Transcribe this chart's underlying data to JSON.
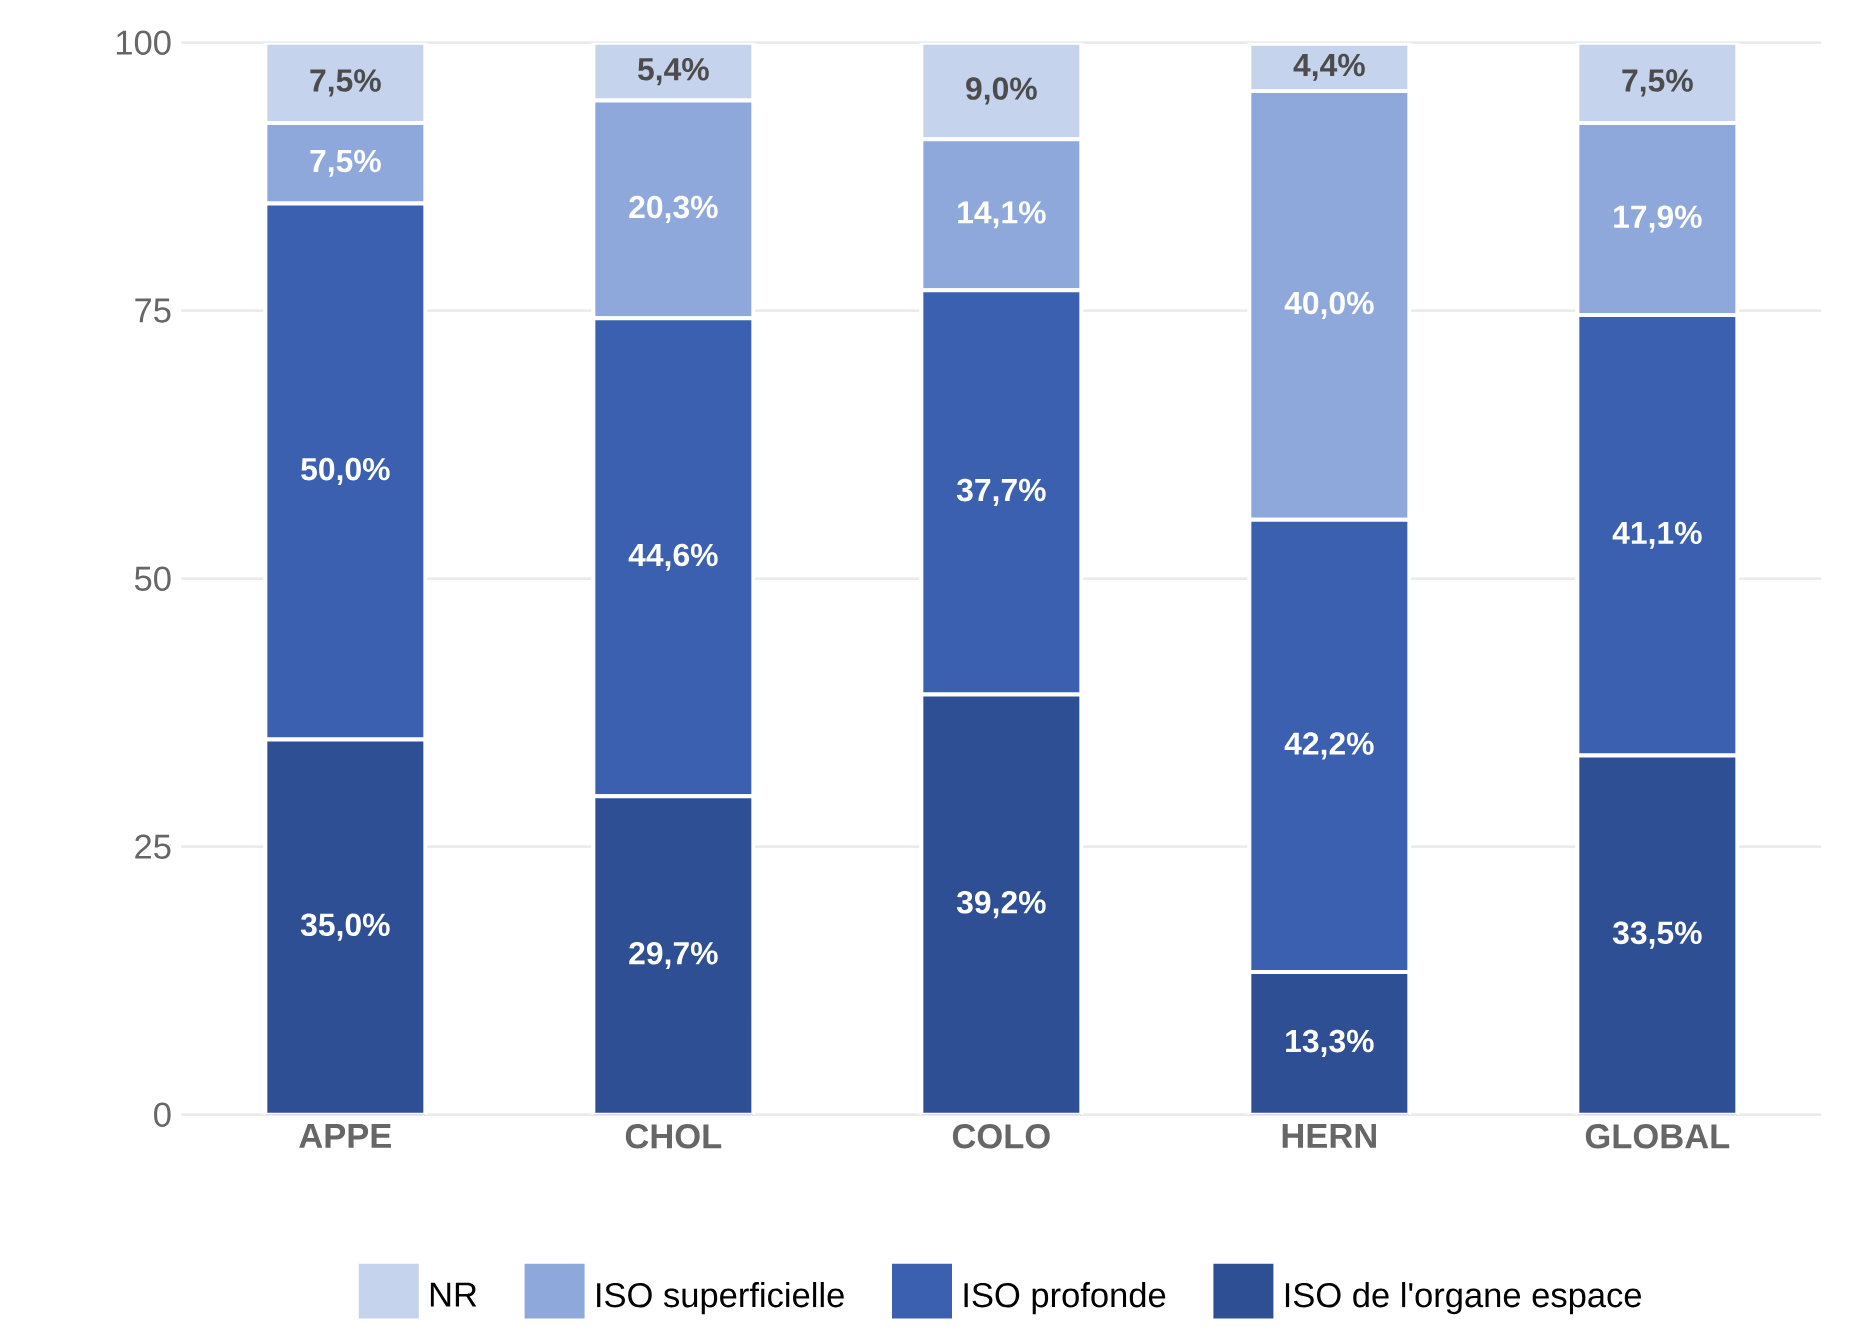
{
  "chart_data": {
    "type": "bar",
    "stacked": true,
    "categories": [
      "APPE",
      "CHOL",
      "COLO",
      "HERN",
      "GLOBAL"
    ],
    "series": [
      {
        "name": "ISO de l'organe espace",
        "color": "#2f4f94",
        "values": [
          35.0,
          29.7,
          39.2,
          13.3,
          33.5
        ],
        "value_labels": [
          "35,0%",
          "29,7%",
          "39,2%",
          "13,3%",
          "33,5%"
        ]
      },
      {
        "name": "ISO profonde",
        "color": "#3b60b0",
        "values": [
          50.0,
          44.6,
          37.7,
          42.2,
          41.1
        ],
        "value_labels": [
          "50,0%",
          "44,6%",
          "37,7%",
          "42,2%",
          "41,1%"
        ]
      },
      {
        "name": "ISO superficielle",
        "color": "#8ea8dc",
        "values": [
          7.5,
          20.3,
          14.1,
          40.0,
          17.9
        ],
        "value_labels": [
          "7,5%",
          "20,3%",
          "14,1%",
          "40,0%",
          "17,9%"
        ]
      },
      {
        "name": "NR",
        "color": "#c6d3ec",
        "values": [
          7.5,
          5.4,
          9.0,
          4.4,
          7.5
        ],
        "value_labels": [
          "7,5%",
          "5,4%",
          "9,0%",
          "4,4%",
          "7,5%"
        ]
      }
    ],
    "ylim": [
      0,
      100
    ],
    "yticks": [
      0,
      25,
      50,
      75,
      100
    ],
    "grid": "y",
    "legend": "bottom"
  }
}
